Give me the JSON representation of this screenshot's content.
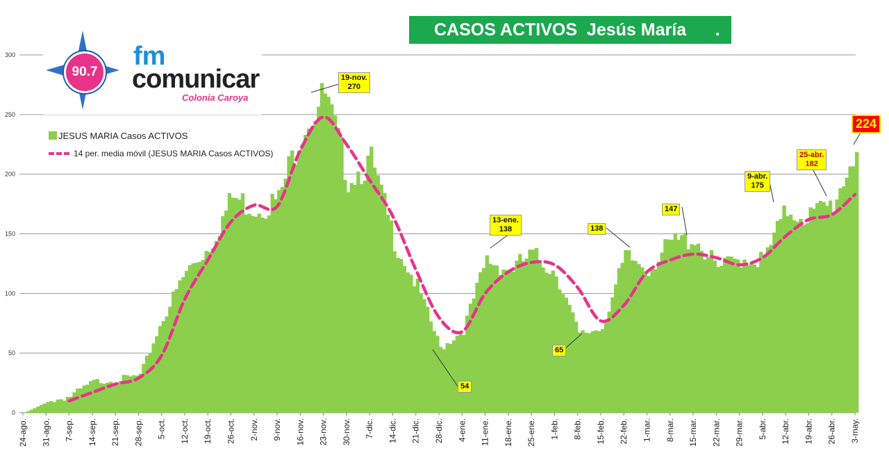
{
  "title": "CASOS ACTIVOS  Jesús María      .",
  "logo": {
    "frequency": "90.7",
    "fm": "fm",
    "brand": "comunicar",
    "city": "Colonia Caroya"
  },
  "legend": {
    "bars": "JESUS MARIA Casos ACTIVOS",
    "line": "14 per. media móvil (JESUS MARIA Casos ACTIVOS)"
  },
  "colors": {
    "bars": "#8ccf4d",
    "line": "#e8338a",
    "title_bg": "#1ba84f",
    "callout_bg": "#ffff00",
    "last_bg": "#ff0000"
  },
  "callouts": {
    "peak_nov": [
      "19-nov.",
      "270"
    ],
    "low_dec": "54",
    "peak_jan": [
      "13-ene.",
      "138"
    ],
    "low_feb": "65",
    "peak_feb": "138",
    "peak_mar": "147",
    "peak_apr9": [
      "9-abr.",
      "175"
    ],
    "peak_apr25": [
      "25-abr.",
      "182"
    ],
    "last": "224"
  },
  "chart_data": {
    "type": "bar",
    "title": "CASOS ACTIVOS  Jesús María      .",
    "ylim": [
      0,
      300
    ],
    "yticks": [
      0,
      50,
      100,
      150,
      200,
      250,
      300
    ],
    "x_tick_labels": [
      "24-ago.",
      "31-ago.",
      "7-sep.",
      "14-sep.",
      "21-sep.",
      "28-sep.",
      "5-oct.",
      "12-oct.",
      "19-oct.",
      "26-oct.",
      "2-nov.",
      "9-nov.",
      "16-nov.",
      "23-nov.",
      "30-nov.",
      "7-dic.",
      "14-dic.",
      "21-dic.",
      "28-dic.",
      "4-ene.",
      "11-ene.",
      "18-ene.",
      "25-ene.",
      "1-feb.",
      "8-feb.",
      "15-feb.",
      "22-feb.",
      "1-mar.",
      "8-mar.",
      "15-mar.",
      "22-mar.",
      "29-mar.",
      "5-abr.",
      "12-abr.",
      "19-abr.",
      "26-abr.",
      "3-may."
    ],
    "weekly_anchor_values": [
      0,
      9,
      14,
      26,
      28,
      31,
      80,
      118,
      140,
      180,
      172,
      178,
      240,
      265,
      198,
      210,
      145,
      105,
      54,
      70,
      128,
      120,
      132,
      118,
      65,
      72,
      130,
      122,
      142,
      147,
      120,
      130,
      128,
      170,
      165,
      175,
      224
    ],
    "series": [
      {
        "name": "JESUS MARIA Casos ACTIVOS",
        "type": "bar"
      },
      {
        "name": "14 per. media móvil (JESUS MARIA Casos ACTIVOS)",
        "type": "line",
        "weekly_anchor_values": [
          null,
          null,
          10,
          17,
          24,
          29,
          48,
          95,
          128,
          160,
          174,
          173,
          220,
          248,
          225,
          195,
          165,
          120,
          80,
          68,
          100,
          118,
          126,
          124,
          105,
          77,
          90,
          118,
          128,
          133,
          130,
          124,
          130,
          148,
          162,
          166,
          183
        ]
      }
    ]
  }
}
